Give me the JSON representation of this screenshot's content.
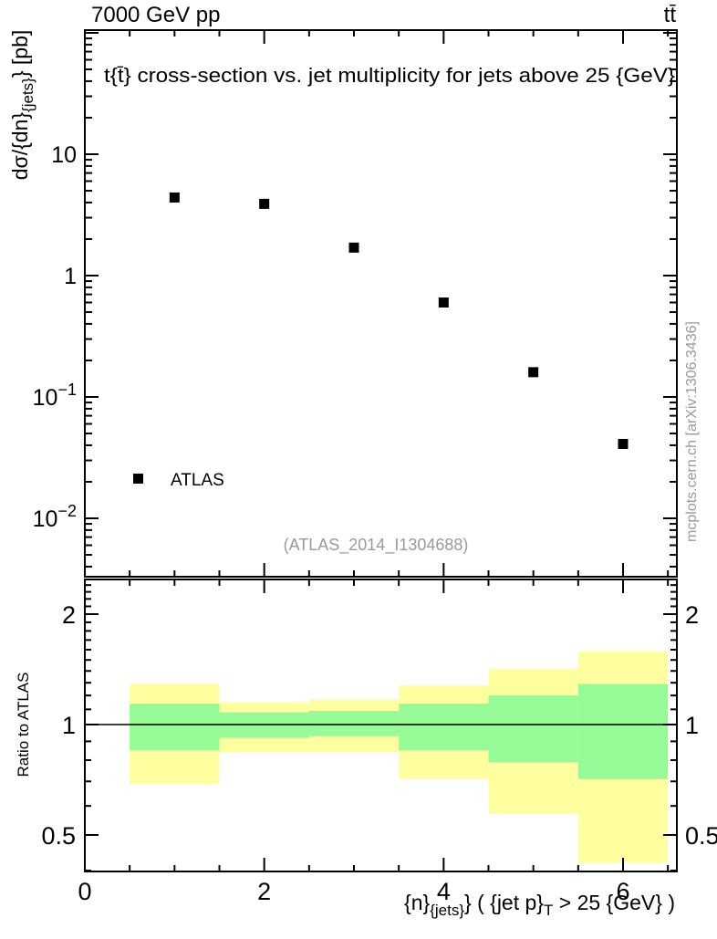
{
  "header": {
    "left_title": "7000 GeV pp",
    "right_title": "tt̄"
  },
  "watermark": "(ATLAS_2014_I1304688)",
  "side_label": "mcplots.cern.ch [arXiv:1306.3436]",
  "chart_data": {
    "type": "scatter",
    "title": "t{t̄} cross-section vs. jet multiplicity for jets above 25 {GeV}",
    "xlabel_text": "{n}_{jets}} ( {jet p}_T > 25 {GeV} )",
    "ylabel_text": "dσ/{dn}_{jets}} [pb]",
    "xlabel_parts": [
      {
        "t": "{n}"
      },
      {
        "t": "{jets}",
        "sub": true
      },
      {
        "t": "} ( {jet p}"
      },
      {
        "t": "T",
        "sub": true
      },
      {
        "t": " > 25 {GeV} )"
      }
    ],
    "ylabel_parts": [
      {
        "t": "dσ/{dn}"
      },
      {
        "t": "{jets}",
        "sub": true
      },
      {
        "t": "} [pb]"
      }
    ],
    "xscale": "linear",
    "yscale": "log",
    "xlim": [
      0,
      6.6
    ],
    "ylim": [
      0.0033,
      105
    ],
    "grid": false,
    "xticks": [
      {
        "value": 0,
        "label": "0"
      },
      {
        "value": 2,
        "label": "2"
      },
      {
        "value": 4,
        "label": "4"
      },
      {
        "value": 6,
        "label": "6"
      }
    ],
    "xtick_minor_step": 0.5,
    "yticks": [
      {
        "value": 10,
        "base": "10",
        "exp": ""
      },
      {
        "value": 1,
        "base": "1",
        "exp": ""
      },
      {
        "value": 0.1,
        "base": "10",
        "exp": "−1"
      },
      {
        "value": 0.01,
        "base": "10",
        "exp": "−2"
      }
    ],
    "series": [
      {
        "name": "ATLAS",
        "marker": "filled-square",
        "color": "#000000",
        "x": [
          1,
          2,
          3,
          4,
          5,
          6
        ],
        "y": [
          4.4,
          3.9,
          1.7,
          0.6,
          0.16,
          0.041
        ]
      }
    ],
    "legend": {
      "items": [
        {
          "label": "ATLAS",
          "marker": "filled-square",
          "color": "#000000"
        }
      ],
      "position": "bottom-left-inside"
    },
    "ratio_panel": {
      "ylabel": "Ratio to ATLAS",
      "yscale": "log",
      "ylim": [
        0.4,
        2.5
      ],
      "yticks": [
        {
          "value": 0.5,
          "label": "0.5"
        },
        {
          "value": 1,
          "label": "1"
        },
        {
          "value": 2,
          "label": "2"
        }
      ],
      "ytick_minor_step": 0.1,
      "reference_line": 1,
      "band_colors": {
        "outer": "#ffffa0",
        "inner": "#96fb96"
      },
      "bins": [
        {
          "x0": 0.5,
          "x1": 1.5,
          "outer": [
            0.69,
            1.29
          ],
          "inner": [
            0.85,
            1.14
          ]
        },
        {
          "x0": 1.5,
          "x1": 2.5,
          "outer": [
            0.84,
            1.15
          ],
          "inner": [
            0.92,
            1.08
          ]
        },
        {
          "x0": 2.5,
          "x1": 3.5,
          "outer": [
            0.84,
            1.17
          ],
          "inner": [
            0.93,
            1.09
          ]
        },
        {
          "x0": 3.5,
          "x1": 4.5,
          "outer": [
            0.71,
            1.28
          ],
          "inner": [
            0.85,
            1.14
          ]
        },
        {
          "x0": 4.5,
          "x1": 5.5,
          "outer": [
            0.57,
            1.42
          ],
          "inner": [
            0.79,
            1.2
          ]
        },
        {
          "x0": 5.5,
          "x1": 6.5,
          "outer": [
            0.42,
            1.58
          ],
          "inner": [
            0.71,
            1.29
          ]
        }
      ]
    }
  }
}
